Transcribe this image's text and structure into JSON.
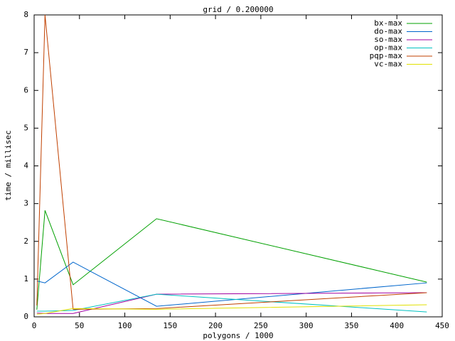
{
  "chart_data": {
    "type": "line",
    "title": "grid / 0.200000",
    "x_label": "polygons / 1000",
    "y_label": "time / millisec",
    "x": [
      3,
      12,
      43,
      135,
      433
    ],
    "series": [
      {
        "name": "bx-max",
        "color": "#00a000",
        "values": [
          0.19,
          2.82,
          0.85,
          2.6,
          0.92
        ]
      },
      {
        "name": "do-max",
        "color": "#0066cc",
        "values": [
          0.95,
          0.9,
          1.45,
          0.28,
          0.9
        ]
      },
      {
        "name": "so-max",
        "color": "#a000a0",
        "values": [
          0.1,
          0.09,
          0.09,
          0.6,
          0.64
        ]
      },
      {
        "name": "op-max",
        "color": "#00c0c0",
        "values": [
          0.15,
          0.15,
          0.17,
          0.6,
          0.13
        ]
      },
      {
        "name": "pqp-max",
        "color": "#c04000",
        "values": [
          0.3,
          8.0,
          0.2,
          0.22,
          0.64
        ]
      },
      {
        "name": "vc-max",
        "color": "#e0e000",
        "values": [
          0.07,
          0.09,
          0.22,
          0.2,
          0.32
        ]
      }
    ],
    "xlim": [
      0,
      450
    ],
    "xticks": [
      0,
      50,
      100,
      150,
      200,
      250,
      300,
      350,
      400,
      450
    ],
    "ylim": [
      0,
      8
    ],
    "yticks": [
      0,
      1,
      2,
      3,
      4,
      5,
      6,
      7,
      8
    ],
    "grid": false,
    "legend": "top-right"
  }
}
